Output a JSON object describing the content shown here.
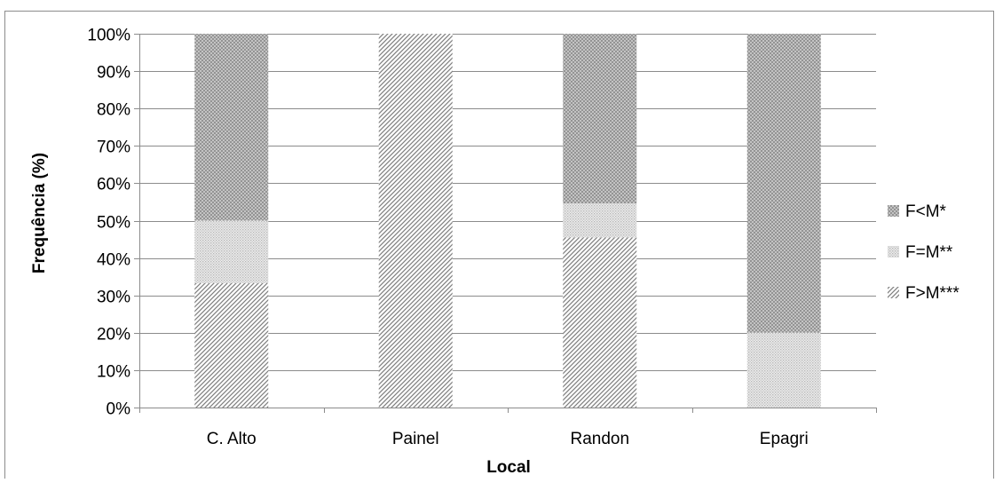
{
  "chart_data": {
    "type": "bar",
    "stacked": true,
    "percent": true,
    "categories": [
      "C. Alto",
      "Painel",
      "Randon",
      "Epagri"
    ],
    "series": [
      {
        "name": "F>M***",
        "values": [
          33.3,
          100,
          45.5,
          0
        ],
        "pattern": "diagonal-hatch"
      },
      {
        "name": "F=M**",
        "values": [
          16.7,
          0,
          9.1,
          20
        ],
        "pattern": "fine-dots"
      },
      {
        "name": "F<M*",
        "values": [
          50,
          0,
          45.4,
          80
        ],
        "pattern": "crosshatch"
      }
    ],
    "xlabel": "Local",
    "ylabel": "Frequência (%)",
    "ylim": [
      0,
      100
    ],
    "yticks": [
      "0%",
      "10%",
      "20%",
      "30%",
      "40%",
      "50%",
      "60%",
      "70%",
      "80%",
      "90%",
      "100%"
    ],
    "grid": true,
    "legend_position": "right",
    "legend_order": [
      "F<M*",
      "F=M**",
      "F>M***"
    ],
    "colors": {
      "bar_pattern": "#8a8a8a",
      "grid": "#8c8c8c",
      "axis": "#8c8c8c",
      "frame": "#8c8c8c"
    }
  }
}
